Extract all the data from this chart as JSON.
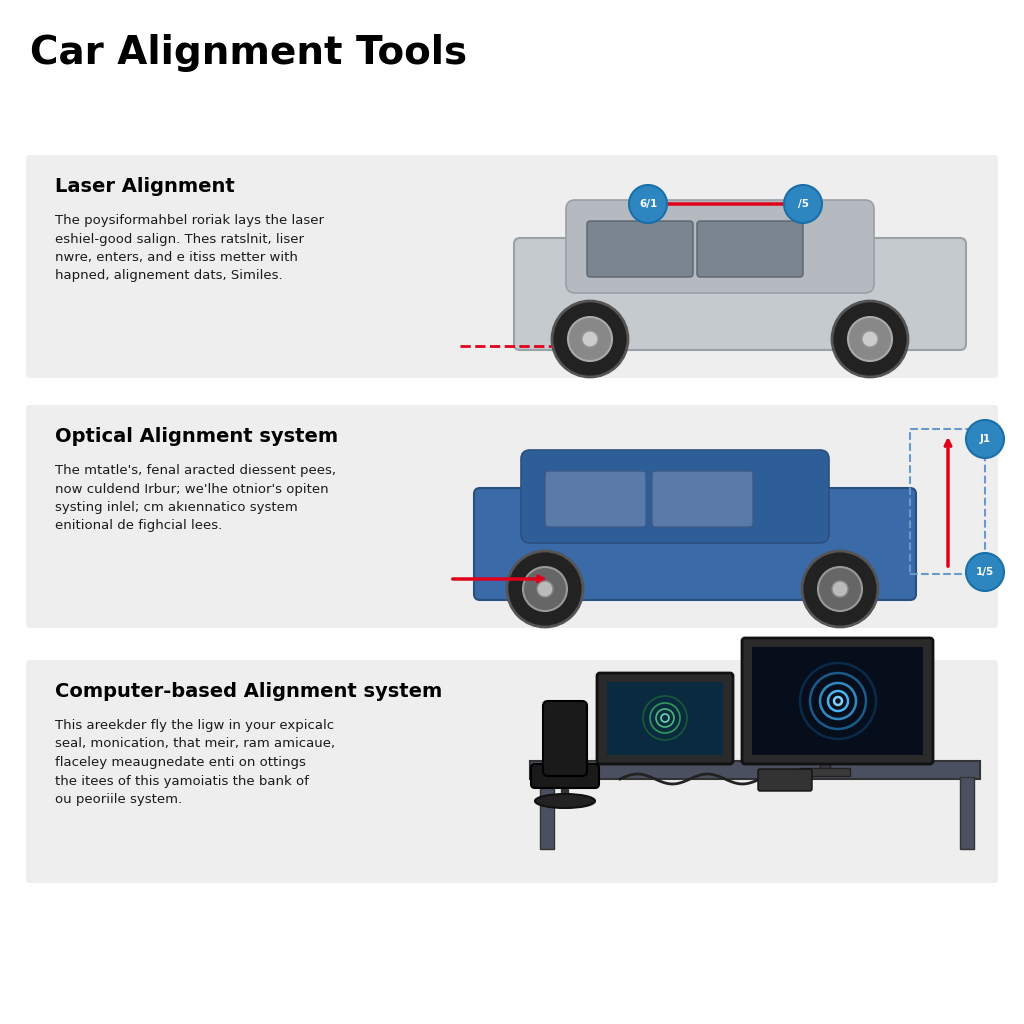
{
  "title": "Car Alignment Tools",
  "title_fontsize": 28,
  "title_fontweight": "bold",
  "bg_color": "#ffffff",
  "panel_bg_color": "#eeeeee",
  "panels": [
    {
      "subtitle": "Laser Alignment",
      "text": "The poysiformahbel roriak lays the laser\neshiel-good salign. Thes ratslnit, liser\nnwre, enters, and e itiss metter with\nhapned, alignement dats, Similes.",
      "arrow_color": "#e0001a",
      "badge_color": "#2e86c1",
      "badge_labels": [
        "6/1",
        "/5"
      ],
      "type": "laser"
    },
    {
      "subtitle": "Optical Alignment system",
      "text": "The mtatle's, fenal aracted diessent pees,\nnow culdend Irbur; we'lhe otnior's opiten\nsysting inlel; cm akıennatico system\nenitional de fighcial lees.",
      "arrow_color": "#e0001a",
      "badge_color": "#2e86c1",
      "badge_labels": [
        "J1",
        "1/5"
      ],
      "type": "optical"
    },
    {
      "subtitle": "Computer-based Alignment system",
      "text": "This areekder fly the ligw in your expicalc\nseal, monication, that meir, ram amicaue,\nflaceley meaugnedate enti on ottings\nthe itees of this yamoiatis the bank of\nou peoriile system.",
      "type": "computer"
    }
  ]
}
